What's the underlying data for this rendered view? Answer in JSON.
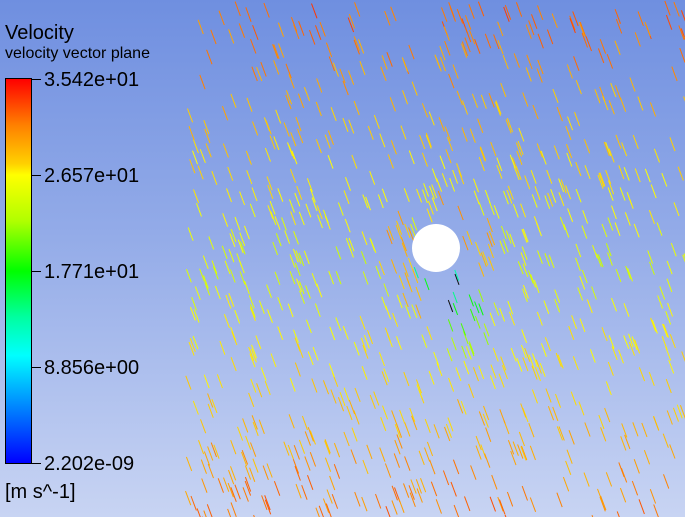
{
  "legend": {
    "title": "Velocity",
    "subtitle": "velocity vector plane",
    "ticks": [
      "3.542e+01",
      "2.657e+01",
      "1.771e+01",
      "8.856e+00",
      "2.202e-09"
    ],
    "units": "[m s^-1]",
    "range": [
      2.202e-09,
      35.42
    ]
  },
  "colors": {
    "background_top": "#6f8fe0",
    "background_bottom": "#c8d4f3",
    "colormap": [
      "#0000ff",
      "#00ffff",
      "#00ff00",
      "#ffff00",
      "#ff8000",
      "#ff0000"
    ]
  },
  "scene": {
    "obstacle": "white circular cylinder",
    "flow_direction": "top-left to bottom-right"
  }
}
